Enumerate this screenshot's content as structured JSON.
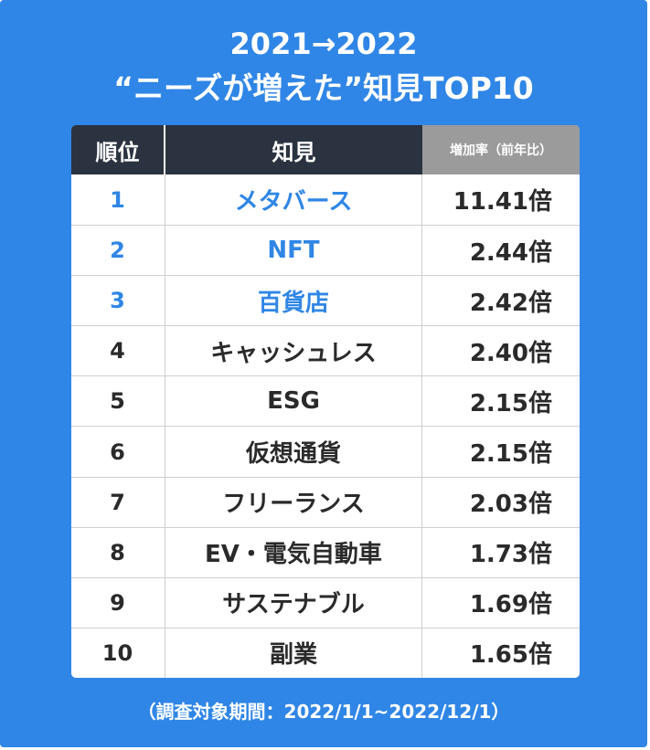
{
  "title": {
    "line1": "2021→2022",
    "line2": "“ニーズが増えた”知見TOP10"
  },
  "table": {
    "headers": {
      "rank": "順位",
      "name": "知見",
      "rate": "増加率（前年比）"
    },
    "rows": [
      {
        "rank": "1",
        "name": "メタバース",
        "rate": "11.41倍"
      },
      {
        "rank": "2",
        "name": "NFT",
        "rate": "2.44倍"
      },
      {
        "rank": "3",
        "name": "百貨店",
        "rate": "2.42倍"
      },
      {
        "rank": "4",
        "name": "キャッシュレス",
        "rate": "2.40倍"
      },
      {
        "rank": "5",
        "name": "ESG",
        "rate": "2.15倍"
      },
      {
        "rank": "6",
        "name": "仮想通貨",
        "rate": "2.15倍"
      },
      {
        "rank": "7",
        "name": "フリーランス",
        "rate": "2.03倍"
      },
      {
        "rank": "8",
        "name": "EV・電気自動車",
        "rate": "1.73倍"
      },
      {
        "rank": "9",
        "name": "サステナブル",
        "rate": "1.69倍"
      },
      {
        "rank": "10",
        "name": "副業",
        "rate": "1.65倍"
      }
    ]
  },
  "footer": {
    "note": "（調査対象期間：2022/1/1~2022/12/1）"
  },
  "colors": {
    "background": "#2f86e6",
    "header_dark": "#2b3340",
    "header_gray": "#9b9b9b",
    "highlight": "#2f86e6"
  }
}
